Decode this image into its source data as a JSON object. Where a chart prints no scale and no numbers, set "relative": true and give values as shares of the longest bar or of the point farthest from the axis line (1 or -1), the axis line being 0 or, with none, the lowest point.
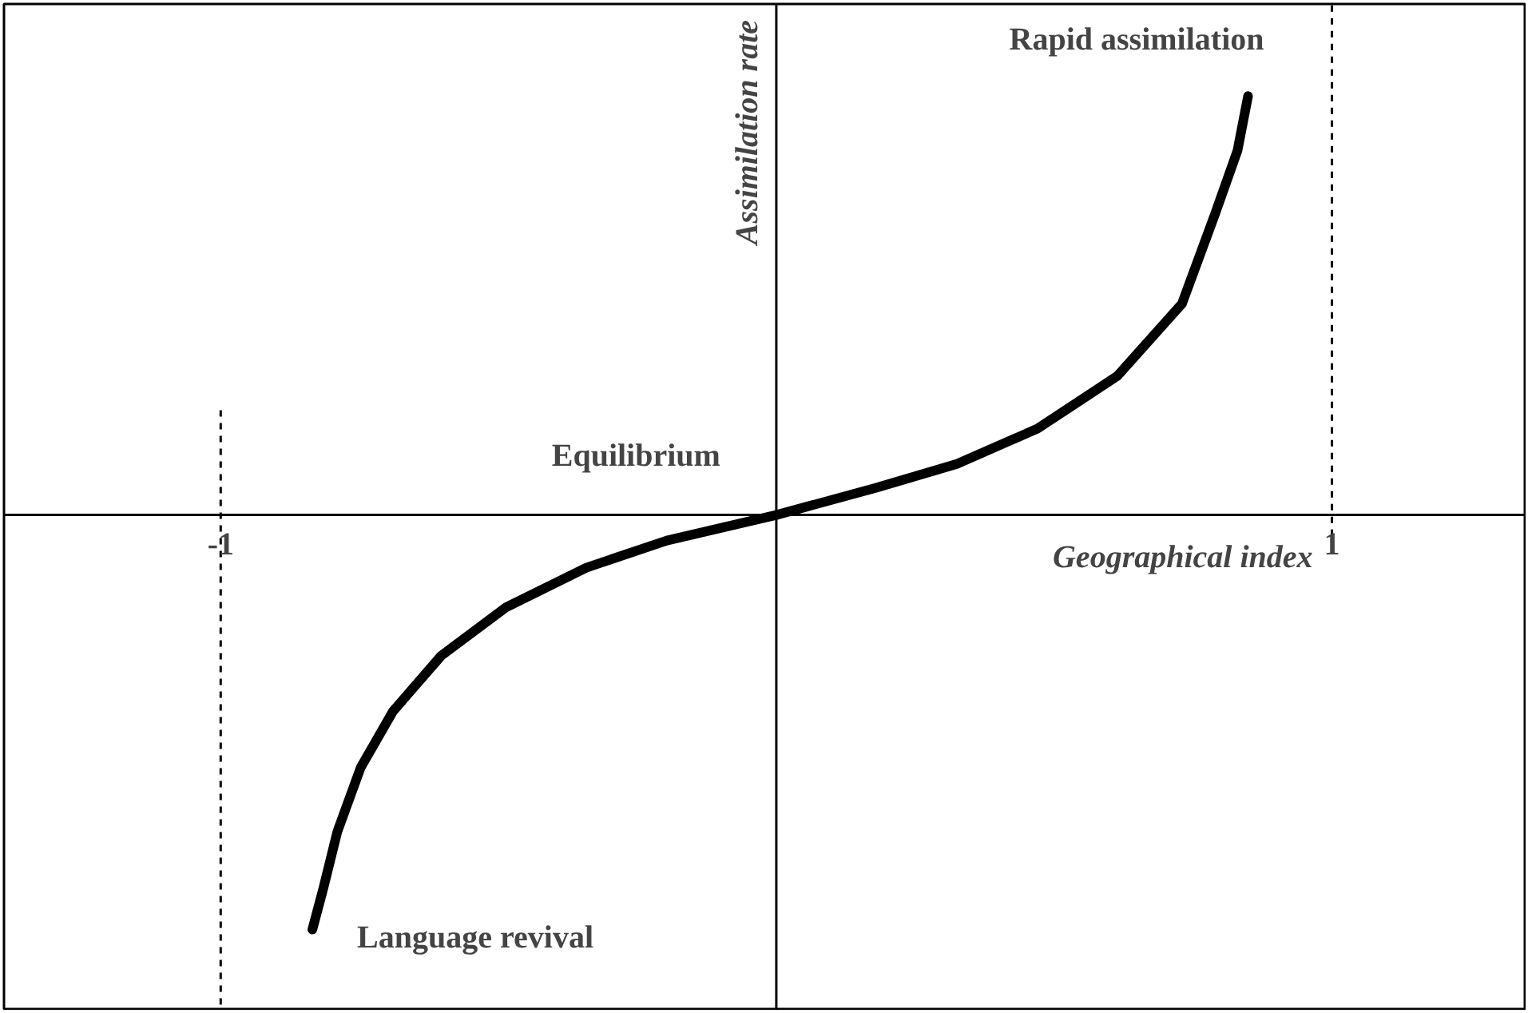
{
  "chart_data": {
    "type": "line",
    "relative": true,
    "xlabel": "Geographical index",
    "ylabel": "Assimilation rate",
    "x": [
      -0.835,
      -0.815,
      -0.79,
      -0.748,
      -0.69,
      -0.603,
      -0.487,
      -0.342,
      -0.197,
      0,
      0.18,
      0.325,
      0.47,
      0.614,
      0.73,
      0.79,
      0.83,
      0.849
    ],
    "series": [
      {
        "color": "#000000",
        "values": [
          -0.99,
          -0.89,
          -0.756,
          -0.603,
          -0.469,
          -0.336,
          -0.221,
          -0.126,
          -0.061,
          0,
          0.065,
          0.122,
          0.206,
          0.332,
          0.504,
          0.72,
          0.87,
          1.0
        ]
      }
    ],
    "xlim": [
      -1.39,
      1.35
    ],
    "xticks": [
      -1,
      1
    ],
    "ref_lines": [
      {
        "axis": "x",
        "value": -1,
        "line_style": "dashed",
        "color": "#000000"
      },
      {
        "axis": "x",
        "value": 1,
        "line_style": "dashed",
        "color": "#000000"
      }
    ],
    "annotations": [
      {
        "text": "Equilibrium",
        "x": 0,
        "y": 0
      },
      {
        "text": "Rapid assimilation",
        "x": 0.849,
        "y": 1.0
      },
      {
        "text": "Language revival",
        "x": -0.835,
        "y": -0.99
      }
    ],
    "grid": false,
    "marker": "none",
    "line_style": "solid"
  }
}
